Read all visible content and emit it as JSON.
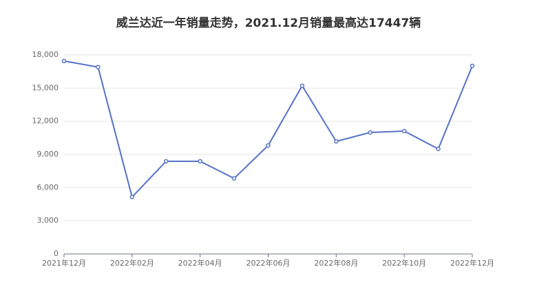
{
  "chart_data": {
    "type": "line",
    "title": "威兰达近一年销量走势，2021.12月销量最高达17447辆",
    "categories": [
      "2021年12月",
      null,
      "2022年02月",
      null,
      "2022年04月",
      null,
      "2022年06月",
      null,
      "2022年08月",
      null,
      "2022年10月",
      null,
      "2022年12月"
    ],
    "series": [
      {
        "color": "#5470c6",
        "values": [
          17447,
          16900,
          5150,
          8380,
          8380,
          6830,
          9810,
          15210,
          10180,
          10990,
          11110,
          9500,
          17010
        ]
      }
    ],
    "ylim": [
      0,
      18000
    ],
    "yticks": [
      0,
      {
        "value": 3000,
        "label": "3,000"
      },
      {
        "value": 6000,
        "label": "6,000"
      },
      {
        "value": 9000,
        "label": "9,000"
      },
      {
        "value": 12000,
        "label": "12,000"
      },
      {
        "value": 15000,
        "label": "15,000"
      },
      {
        "value": 18000,
        "label": "18,000"
      }
    ],
    "grid": true
  }
}
